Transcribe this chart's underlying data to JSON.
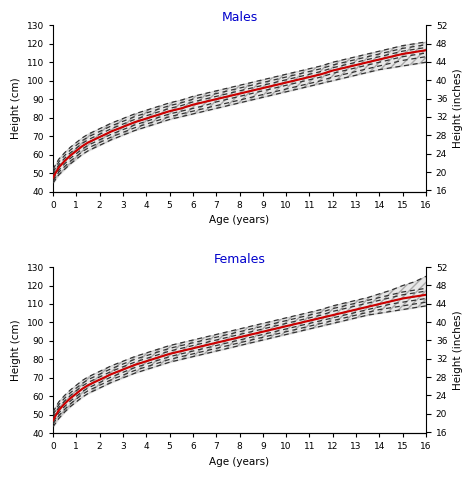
{
  "title_males": "Males",
  "title_females": "Females",
  "xlabel": "Age (years)",
  "ylabel_left": "Height (cm)",
  "ylabel_right": "Height (inches)",
  "ylim_cm": [
    40,
    130
  ],
  "xlim": [
    0,
    16
  ],
  "yticks_cm": [
    40,
    50,
    60,
    70,
    80,
    90,
    100,
    110,
    120,
    130
  ],
  "yticks_inches": [
    16,
    20,
    24,
    28,
    32,
    36,
    40,
    44,
    48,
    52
  ],
  "xticks": [
    0,
    1,
    2,
    3,
    4,
    5,
    6,
    7,
    8,
    9,
    10,
    11,
    12,
    13,
    14,
    15,
    16
  ],
  "title_color": "#0000CC",
  "line_color_red": "#CC0000",
  "dashed_color": "#333333",
  "ages": [
    0,
    0.25,
    0.5,
    0.75,
    1,
    1.25,
    1.5,
    1.75,
    2,
    2.5,
    3,
    3.5,
    4,
    4.5,
    5,
    5.5,
    6,
    6.5,
    7,
    7.5,
    8,
    8.5,
    9,
    9.5,
    10,
    10.5,
    11,
    11.5,
    12,
    12.5,
    13,
    13.5,
    14,
    14.5,
    15,
    15.5,
    16
  ],
  "males": {
    "p3": [
      44.5,
      49,
      52,
      55,
      57.5,
      60,
      62,
      63.5,
      65,
      68,
      70.5,
      73,
      75,
      77,
      79,
      80.5,
      82,
      83.5,
      85,
      86.5,
      88,
      89.5,
      91,
      92.5,
      94,
      95.5,
      97,
      98.5,
      100,
      101.5,
      103,
      104.5,
      106,
      107,
      108,
      109,
      110
    ],
    "p10": [
      45.5,
      50.5,
      53.5,
      56.5,
      59,
      61.5,
      63.5,
      65,
      66.5,
      69.5,
      72,
      74.5,
      76.5,
      78.5,
      80.5,
      82,
      83.5,
      85,
      86.5,
      88,
      89.5,
      91,
      92.5,
      94,
      95.5,
      97,
      98.5,
      100,
      102,
      103.5,
      105,
      106.5,
      108,
      109.5,
      111,
      112,
      113
    ],
    "p25": [
      46.5,
      51.5,
      55,
      58,
      60.5,
      63,
      65,
      66.5,
      68,
      71,
      73.5,
      76,
      78,
      80,
      82,
      83.5,
      85,
      86.5,
      88.5,
      90,
      91.5,
      93,
      94.5,
      96,
      97.5,
      99,
      100.5,
      102,
      104,
      105.5,
      107,
      108.5,
      110,
      111.5,
      113,
      114,
      115
    ],
    "p50": [
      47.5,
      53,
      56.5,
      59.5,
      62,
      64.5,
      66.5,
      68,
      69.5,
      72.5,
      75,
      77.5,
      79.5,
      81.5,
      83.5,
      85,
      87,
      88.5,
      90,
      91.5,
      93,
      94.5,
      96,
      97.5,
      99,
      100.5,
      102,
      103.5,
      105.5,
      107,
      108.5,
      110,
      111.5,
      113,
      114.5,
      115.5,
      116.5
    ],
    "p75": [
      49,
      54.5,
      58,
      61,
      63.5,
      66,
      68,
      69.5,
      71,
      74,
      76.5,
      79,
      81,
      83,
      85,
      86.5,
      88.5,
      90,
      91.5,
      93,
      94.5,
      96,
      97.5,
      99,
      100.5,
      102,
      103.5,
      105,
      107,
      108.5,
      110,
      111.5,
      113,
      114.5,
      116,
      117,
      118
    ],
    "p90": [
      50.5,
      56,
      59.5,
      62.5,
      65,
      67.5,
      69.5,
      71,
      72.5,
      75.5,
      78,
      80.5,
      82.5,
      84.5,
      86.5,
      88,
      90,
      91.5,
      93,
      94.5,
      96,
      97.5,
      99,
      100.5,
      102,
      103.5,
      105,
      106.5,
      108.5,
      110,
      111.5,
      113,
      114.5,
      116,
      117.5,
      118.5,
      119.5
    ],
    "p97": [
      52,
      57.5,
      61,
      64,
      66.5,
      69,
      71,
      72.5,
      74,
      77,
      79.5,
      82,
      84,
      86,
      88,
      89.5,
      91.5,
      93,
      94.5,
      96,
      97.5,
      99,
      100.5,
      102,
      103.5,
      105,
      106.5,
      108,
      110,
      111.5,
      113,
      114.5,
      116,
      117.5,
      119,
      120,
      121
    ]
  },
  "females": {
    "p3": [
      43.5,
      48,
      51.5,
      54.5,
      57,
      59.5,
      61.5,
      63,
      64.5,
      67.5,
      70,
      72.5,
      74.5,
      76.5,
      78.5,
      80,
      81.5,
      83,
      84.5,
      86,
      87.5,
      89,
      90.5,
      92,
      93.5,
      95,
      96.5,
      98,
      99.5,
      101,
      102.5,
      104,
      105,
      106,
      107,
      108,
      109
    ],
    "p10": [
      45,
      49.5,
      53,
      56,
      58.5,
      61,
      63,
      64.5,
      66,
      69,
      71.5,
      74,
      76,
      78,
      80,
      81.5,
      83,
      84.5,
      86,
      87.5,
      89,
      90.5,
      92,
      93.5,
      95,
      96.5,
      98,
      99.5,
      101,
      102.5,
      104,
      105.5,
      107,
      108,
      109,
      110,
      111
    ],
    "p25": [
      46,
      51,
      54.5,
      57.5,
      60,
      62.5,
      64.5,
      66,
      67.5,
      70.5,
      73,
      75.5,
      77.5,
      79.5,
      81.5,
      83,
      84.5,
      86,
      87.5,
      89,
      90.5,
      92,
      93.5,
      95,
      96.5,
      98,
      99.5,
      101,
      102.5,
      104,
      105.5,
      107,
      108.5,
      110,
      111,
      112,
      113
    ],
    "p50": [
      47,
      52.5,
      56,
      59,
      61.5,
      64,
      66,
      67.5,
      69,
      72,
      74.5,
      77,
      79,
      81,
      83,
      84.5,
      86,
      87.5,
      89,
      90.5,
      92,
      93.5,
      95,
      96.5,
      98,
      99.5,
      101,
      102.5,
      104,
      105.5,
      107,
      108.5,
      110,
      111.5,
      113,
      114,
      115
    ],
    "p75": [
      48.5,
      54,
      57.5,
      60.5,
      63,
      65.5,
      67.5,
      69,
      70.5,
      73.5,
      76,
      78.5,
      80.5,
      82.5,
      84.5,
      86,
      87.5,
      89,
      90.5,
      92,
      93.5,
      95,
      96.5,
      98,
      99.5,
      101,
      102.5,
      104,
      106,
      107.5,
      109,
      110.5,
      112,
      113.5,
      115,
      116,
      117
    ],
    "p90": [
      50,
      55.5,
      59,
      62,
      64.5,
      67,
      69,
      70.5,
      72,
      75,
      77.5,
      80,
      82,
      84,
      86,
      87.5,
      89,
      90.5,
      92,
      93.5,
      95,
      96.5,
      98,
      99.5,
      101,
      102.5,
      104,
      105.5,
      107.5,
      109,
      110.5,
      112,
      113.5,
      115,
      116.5,
      117.5,
      118.5
    ],
    "p97": [
      51.5,
      57,
      60.5,
      63.5,
      66,
      68.5,
      70.5,
      72,
      73.5,
      76.5,
      79,
      81.5,
      83.5,
      85.5,
      87.5,
      89,
      90.5,
      92,
      93.5,
      95,
      96.5,
      98,
      99.5,
      101,
      102.5,
      104,
      105.5,
      107,
      109,
      110.5,
      112,
      113.5,
      115.5,
      117.5,
      120,
      122,
      125
    ]
  }
}
